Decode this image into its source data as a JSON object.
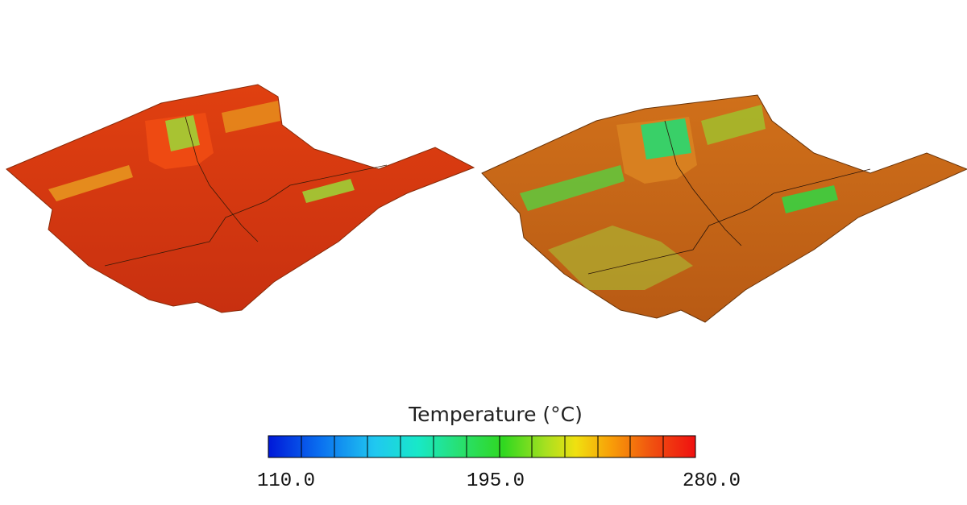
{
  "legend": {
    "title": "Temperature (°C)",
    "labels": [
      "110.0",
      "195.0",
      "280.0"
    ]
  }
}
